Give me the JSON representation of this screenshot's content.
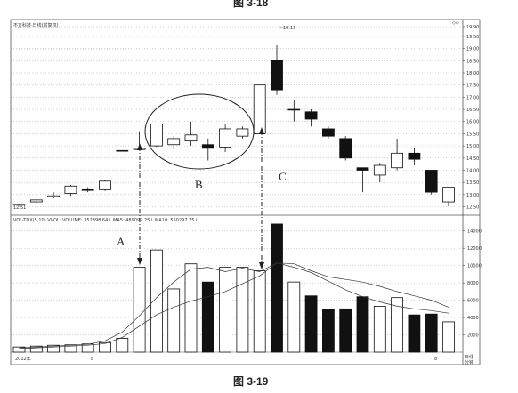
{
  "chart_data": {
    "type": "candlestick",
    "price_panel": {
      "legend": "不方科技·日线(前复权)",
      "ylim": [
        12.3,
        19.9
      ],
      "yticks": [
        "19.90",
        "19.50",
        "19.00",
        "18.50",
        "18.00",
        "17.50",
        "17.00",
        "16.50",
        "16.00",
        "15.50",
        "15.00",
        "14.50",
        "14.00",
        "13.50",
        "13.00",
        "12.50"
      ],
      "high_label": "19.13",
      "low_label": "12.51",
      "candles": [
        {
          "o": 12.58,
          "h": 12.62,
          "l": 12.54,
          "c": 12.6
        },
        {
          "o": 12.7,
          "h": 12.8,
          "l": 12.65,
          "c": 12.78
        },
        {
          "o": 12.9,
          "h": 13.1,
          "l": 12.85,
          "c": 12.95
        },
        {
          "o": 13.05,
          "h": 13.4,
          "l": 12.95,
          "c": 13.35
        },
        {
          "o": 13.2,
          "h": 13.3,
          "l": 13.1,
          "c": 13.2
        },
        {
          "o": 13.2,
          "h": 13.6,
          "l": 13.15,
          "c": 13.55
        },
        {
          "o": 14.81,
          "h": 14.81,
          "l": 14.81,
          "c": 14.81
        },
        {
          "o": 14.85,
          "h": 15.6,
          "l": 14.85,
          "c": 14.9
        },
        {
          "o": 15.0,
          "h": 15.9,
          "l": 14.95,
          "c": 15.9
        },
        {
          "o": 15.05,
          "h": 15.4,
          "l": 14.85,
          "c": 15.3
        },
        {
          "o": 15.2,
          "h": 16.0,
          "l": 15.0,
          "c": 15.45
        },
        {
          "o": 15.05,
          "h": 15.3,
          "l": 14.4,
          "c": 14.9
        },
        {
          "o": 14.95,
          "h": 15.9,
          "l": 14.75,
          "c": 15.7
        },
        {
          "o": 15.4,
          "h": 15.8,
          "l": 15.3,
          "c": 15.7
        },
        {
          "o": 15.5,
          "h": 17.5,
          "l": 15.5,
          "c": 17.5
        },
        {
          "o": 18.5,
          "h": 19.13,
          "l": 17.1,
          "c": 17.3
        },
        {
          "o": 16.5,
          "h": 16.9,
          "l": 16.0,
          "c": 16.5
        },
        {
          "o": 16.4,
          "h": 16.5,
          "l": 15.8,
          "c": 16.1
        },
        {
          "o": 15.7,
          "h": 15.8,
          "l": 15.3,
          "c": 15.4
        },
        {
          "o": 15.3,
          "h": 15.4,
          "l": 14.4,
          "c": 14.5
        },
        {
          "o": 14.1,
          "h": 14.1,
          "l": 13.1,
          "c": 14.0
        },
        {
          "o": 13.8,
          "h": 14.3,
          "l": 13.5,
          "c": 14.2
        },
        {
          "o": 14.1,
          "h": 15.3,
          "l": 14.0,
          "c": 14.7
        },
        {
          "o": 14.7,
          "h": 14.9,
          "l": 14.2,
          "c": 14.45
        },
        {
          "o": 14.0,
          "h": 14.0,
          "l": 13.0,
          "c": 13.1
        },
        {
          "o": 12.7,
          "h": 13.3,
          "l": 12.51,
          "c": 13.3
        }
      ]
    },
    "volume_panel": {
      "legend": "VOL-TDX(5,10) VVOL:  VOLUME: 352898.64↓  MA5: 489092.25↓  MA10: 550297.75↓",
      "ylim": [
        0,
        15000
      ],
      "yticks": [
        "14000",
        "12000",
        "10000",
        "8000",
        "6000",
        "4000",
        "2000"
      ],
      "volumes": [
        600,
        700,
        800,
        850,
        950,
        1100,
        1600,
        9800,
        11800,
        7300,
        10200,
        8100,
        9800,
        9800,
        9400,
        14800,
        8100,
        6500,
        4900,
        5000,
        6400,
        5300,
        6300,
        4300,
        4400,
        3500
      ],
      "ma5": [
        500,
        600,
        700,
        800,
        900,
        1300,
        2300,
        4200,
        6300,
        8100,
        9600,
        9800,
        9300,
        9700,
        9300,
        10300,
        9800,
        9200,
        8200,
        7200,
        6400,
        5800,
        5300,
        5000,
        4800,
        4500
      ],
      "ma10": [
        400,
        500,
        600,
        700,
        800,
        1000,
        1700,
        3000,
        4300,
        5200,
        5900,
        6400,
        7000,
        7900,
        8800,
        10300,
        10200,
        9400,
        8700,
        8400,
        8100,
        7600,
        7000,
        6500,
        6000,
        5200
      ]
    },
    "x_labels": [
      "2012年",
      "8",
      "8"
    ],
    "period_labels": [
      "日线",
      "分钟"
    ]
  },
  "annotations": {
    "a": "A",
    "b": "B",
    "c": "C"
  },
  "caption": "图 3-19",
  "top_caption": "图 3-18",
  "corner_mark": "◇◇"
}
